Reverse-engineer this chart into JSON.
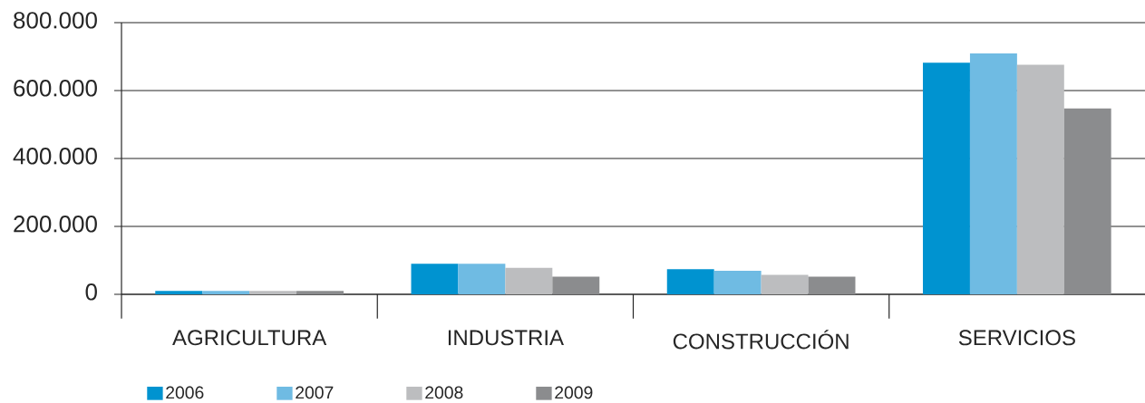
{
  "chart_data": {
    "type": "bar",
    "categories": [
      "AGRICULTURA",
      "INDUSTRIA",
      "CONSTRUCCIÓN",
      "SERVICIOS"
    ],
    "series": [
      {
        "name": "2006",
        "color": "#0093d0",
        "values": [
          10000,
          90000,
          74000,
          682000
        ]
      },
      {
        "name": "2007",
        "color": "#6fbbe3",
        "values": [
          10000,
          90000,
          69000,
          709000
        ]
      },
      {
        "name": "2008",
        "color": "#bcbdbf",
        "values": [
          10000,
          78000,
          57000,
          676000
        ]
      },
      {
        "name": "2009",
        "color": "#8b8c8e",
        "values": [
          10000,
          52000,
          52000,
          547000
        ]
      }
    ],
    "ylim": [
      0,
      800000
    ],
    "yticks": [
      0,
      {
        "value": 200000,
        "label": "200.000"
      },
      {
        "value": 400000,
        "label": "400.000"
      },
      {
        "value": 600000,
        "label": "600.000"
      },
      {
        "value": 800000,
        "label": "800.000"
      }
    ],
    "grid": "y",
    "legend": "bottom left"
  }
}
